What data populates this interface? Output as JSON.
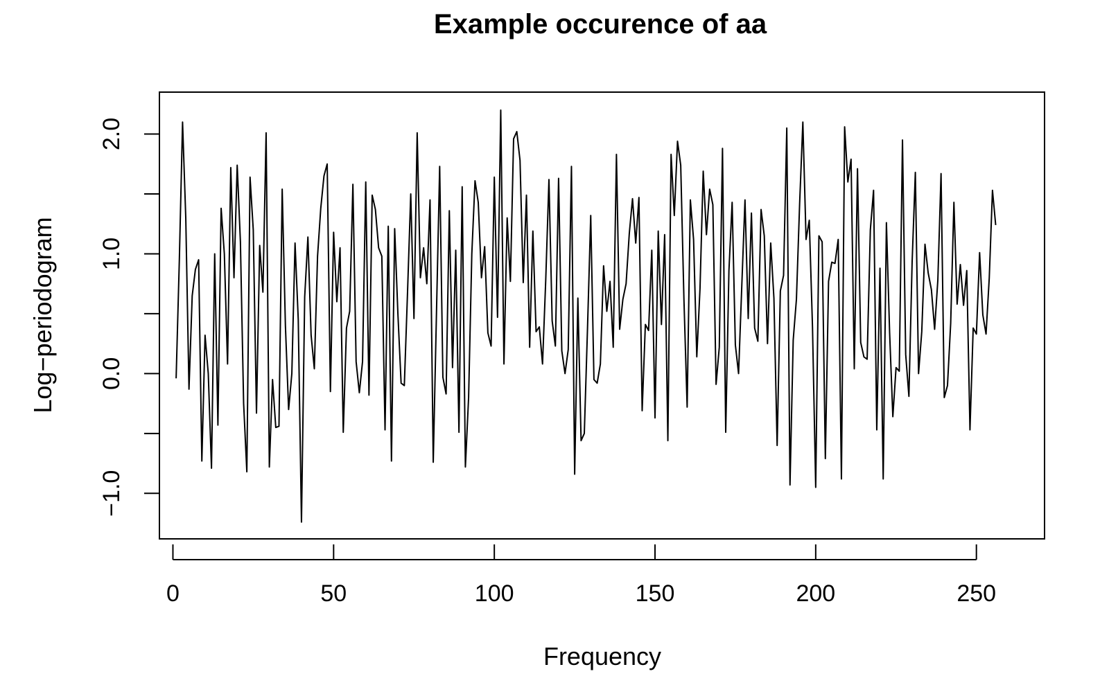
{
  "chart_data": {
    "type": "line",
    "title": "Example occurence of aa",
    "xlabel": "Frequency",
    "ylabel": "Log−periodogram",
    "xlim": [
      -4.2,
      271.2
    ],
    "ylim": [
      -1.38,
      2.35
    ],
    "xticks": [
      0,
      50,
      100,
      150,
      200,
      250
    ],
    "xtick_labels": [
      "0",
      "50",
      "100",
      "150",
      "200",
      "250"
    ],
    "yticks": [
      -1.0,
      -0.5,
      0.0,
      0.5,
      1.0,
      1.5,
      2.0
    ],
    "ytick_labels": [
      "−1.0",
      "",
      "0.0",
      "",
      "1.0",
      "",
      "2.0"
    ],
    "grid": false,
    "series": [
      {
        "color": "#000000",
        "x": [
          1,
          2,
          3,
          4,
          5,
          6,
          7,
          8,
          9,
          10,
          11,
          12,
          13,
          14,
          15,
          16,
          17,
          18,
          19,
          20,
          21,
          22,
          23,
          24,
          25,
          26,
          27,
          28,
          29,
          30,
          31,
          32,
          33,
          34,
          35,
          36,
          37,
          38,
          39,
          40,
          41,
          42,
          43,
          44,
          45,
          46,
          47,
          48,
          49,
          50,
          51,
          52,
          53,
          54,
          55,
          56,
          57,
          58,
          59,
          60,
          61,
          62,
          63,
          64,
          65,
          66,
          67,
          68,
          69,
          70,
          71,
          72,
          73,
          74,
          75,
          76,
          77,
          78,
          79,
          80,
          81,
          82,
          83,
          84,
          85,
          86,
          87,
          88,
          89,
          90,
          91,
          92,
          93,
          94,
          95,
          96,
          97,
          98,
          99,
          100,
          101,
          102,
          103,
          104,
          105,
          106,
          107,
          108,
          109,
          110,
          111,
          112,
          113,
          114,
          115,
          116,
          117,
          118,
          119,
          120,
          121,
          122,
          123,
          124,
          125,
          126,
          127,
          128,
          129,
          130,
          131,
          132,
          133,
          134,
          135,
          136,
          137,
          138,
          139,
          140,
          141,
          142,
          143,
          144,
          145,
          146,
          147,
          148,
          149,
          150,
          151,
          152,
          153,
          154,
          155,
          156,
          157,
          158,
          159,
          160,
          161,
          162,
          163,
          164,
          165,
          166,
          167,
          168,
          169,
          170,
          171,
          172,
          173,
          174,
          175,
          176,
          177,
          178,
          179,
          180,
          181,
          182,
          183,
          184,
          185,
          186,
          187,
          188,
          189,
          190,
          191,
          192,
          193,
          194,
          195,
          196,
          197,
          198,
          199,
          200,
          201,
          202,
          203,
          204,
          205,
          206,
          207,
          208,
          209,
          210,
          211,
          212,
          213,
          214,
          215,
          216,
          217,
          218,
          219,
          220,
          221,
          222,
          223,
          224,
          225,
          226,
          227,
          228,
          229,
          230,
          231,
          232,
          233,
          234,
          235,
          236,
          237,
          238,
          239,
          240,
          241,
          242,
          243,
          244,
          245,
          246,
          247,
          248,
          249,
          250,
          251,
          252,
          253,
          254,
          255,
          256
        ],
        "y": [
          -0.04,
          0.95,
          2.1,
          1.3,
          -0.13,
          0.65,
          0.87,
          0.95,
          -0.73,
          0.32,
          0.0,
          -0.79,
          1.0,
          -0.43,
          1.38,
          1.0,
          0.08,
          1.72,
          0.8,
          1.74,
          1.1,
          -0.25,
          -0.82,
          1.64,
          1.2,
          -0.33,
          1.07,
          0.68,
          2.01,
          -0.78,
          -0.05,
          -0.45,
          -0.44,
          1.54,
          0.4,
          -0.3,
          0.0,
          1.09,
          0.45,
          -1.24,
          0.64,
          1.14,
          0.32,
          0.04,
          0.98,
          1.38,
          1.65,
          1.75,
          -0.15,
          1.18,
          0.6,
          1.05,
          -0.49,
          0.38,
          0.52,
          1.58,
          0.1,
          -0.16,
          0.1,
          1.6,
          -0.18,
          1.49,
          1.37,
          1.05,
          0.98,
          -0.47,
          1.23,
          -0.73,
          1.21,
          0.5,
          -0.08,
          -0.1,
          0.68,
          1.5,
          0.46,
          2.01,
          0.8,
          1.05,
          0.75,
          1.45,
          -0.74,
          0.5,
          1.73,
          -0.03,
          -0.17,
          1.36,
          0.05,
          1.03,
          -0.49,
          1.56,
          -0.78,
          -0.2,
          1.0,
          1.61,
          1.43,
          0.8,
          1.06,
          0.34,
          0.23,
          1.64,
          0.47,
          2.2,
          0.08,
          1.3,
          0.77,
          1.96,
          2.02,
          1.78,
          0.76,
          1.49,
          0.22,
          1.19,
          0.35,
          0.39,
          0.08,
          0.78,
          1.62,
          0.44,
          0.23,
          1.63,
          0.19,
          0.0,
          0.2,
          1.73,
          -0.84,
          0.63,
          -0.56,
          -0.5,
          0.38,
          1.32,
          -0.05,
          -0.08,
          0.08,
          0.9,
          0.52,
          0.77,
          0.22,
          1.83,
          0.37,
          0.62,
          0.75,
          1.17,
          1.46,
          1.09,
          1.47,
          -0.31,
          0.41,
          0.36,
          1.03,
          -0.37,
          1.19,
          0.41,
          1.16,
          -0.56,
          1.83,
          1.32,
          1.94,
          1.74,
          0.62,
          -0.28,
          1.45,
          1.12,
          0.14,
          0.71,
          1.69,
          1.16,
          1.54,
          1.41,
          -0.09,
          0.22,
          1.88,
          -0.49,
          0.86,
          1.43,
          0.24,
          0.0,
          0.73,
          1.45,
          0.46,
          1.34,
          0.38,
          0.27,
          1.37,
          1.15,
          0.25,
          1.09,
          0.63,
          -0.6,
          0.69,
          0.82,
          2.05,
          -0.93,
          0.28,
          0.62,
          1.42,
          2.1,
          1.12,
          1.28,
          0.39,
          -0.95,
          1.15,
          1.1,
          -0.71,
          0.77,
          0.93,
          0.92,
          1.12,
          -0.88,
          2.06,
          1.6,
          1.79,
          0.04,
          1.71,
          0.26,
          0.14,
          0.12,
          1.2,
          1.53,
          -0.47,
          0.88,
          -0.88,
          1.26,
          0.34,
          -0.36,
          0.05,
          0.02,
          1.95,
          0.16,
          -0.19,
          0.93,
          1.68,
          0.0,
          0.35,
          1.08,
          0.84,
          0.7,
          0.37,
          0.78,
          1.67,
          -0.2,
          -0.1,
          0.42,
          1.43,
          0.58,
          0.91,
          0.57,
          0.86,
          -0.47,
          0.38,
          0.33,
          1.01,
          0.49,
          0.33,
          0.8,
          1.53,
          1.24
        ]
      }
    ]
  }
}
